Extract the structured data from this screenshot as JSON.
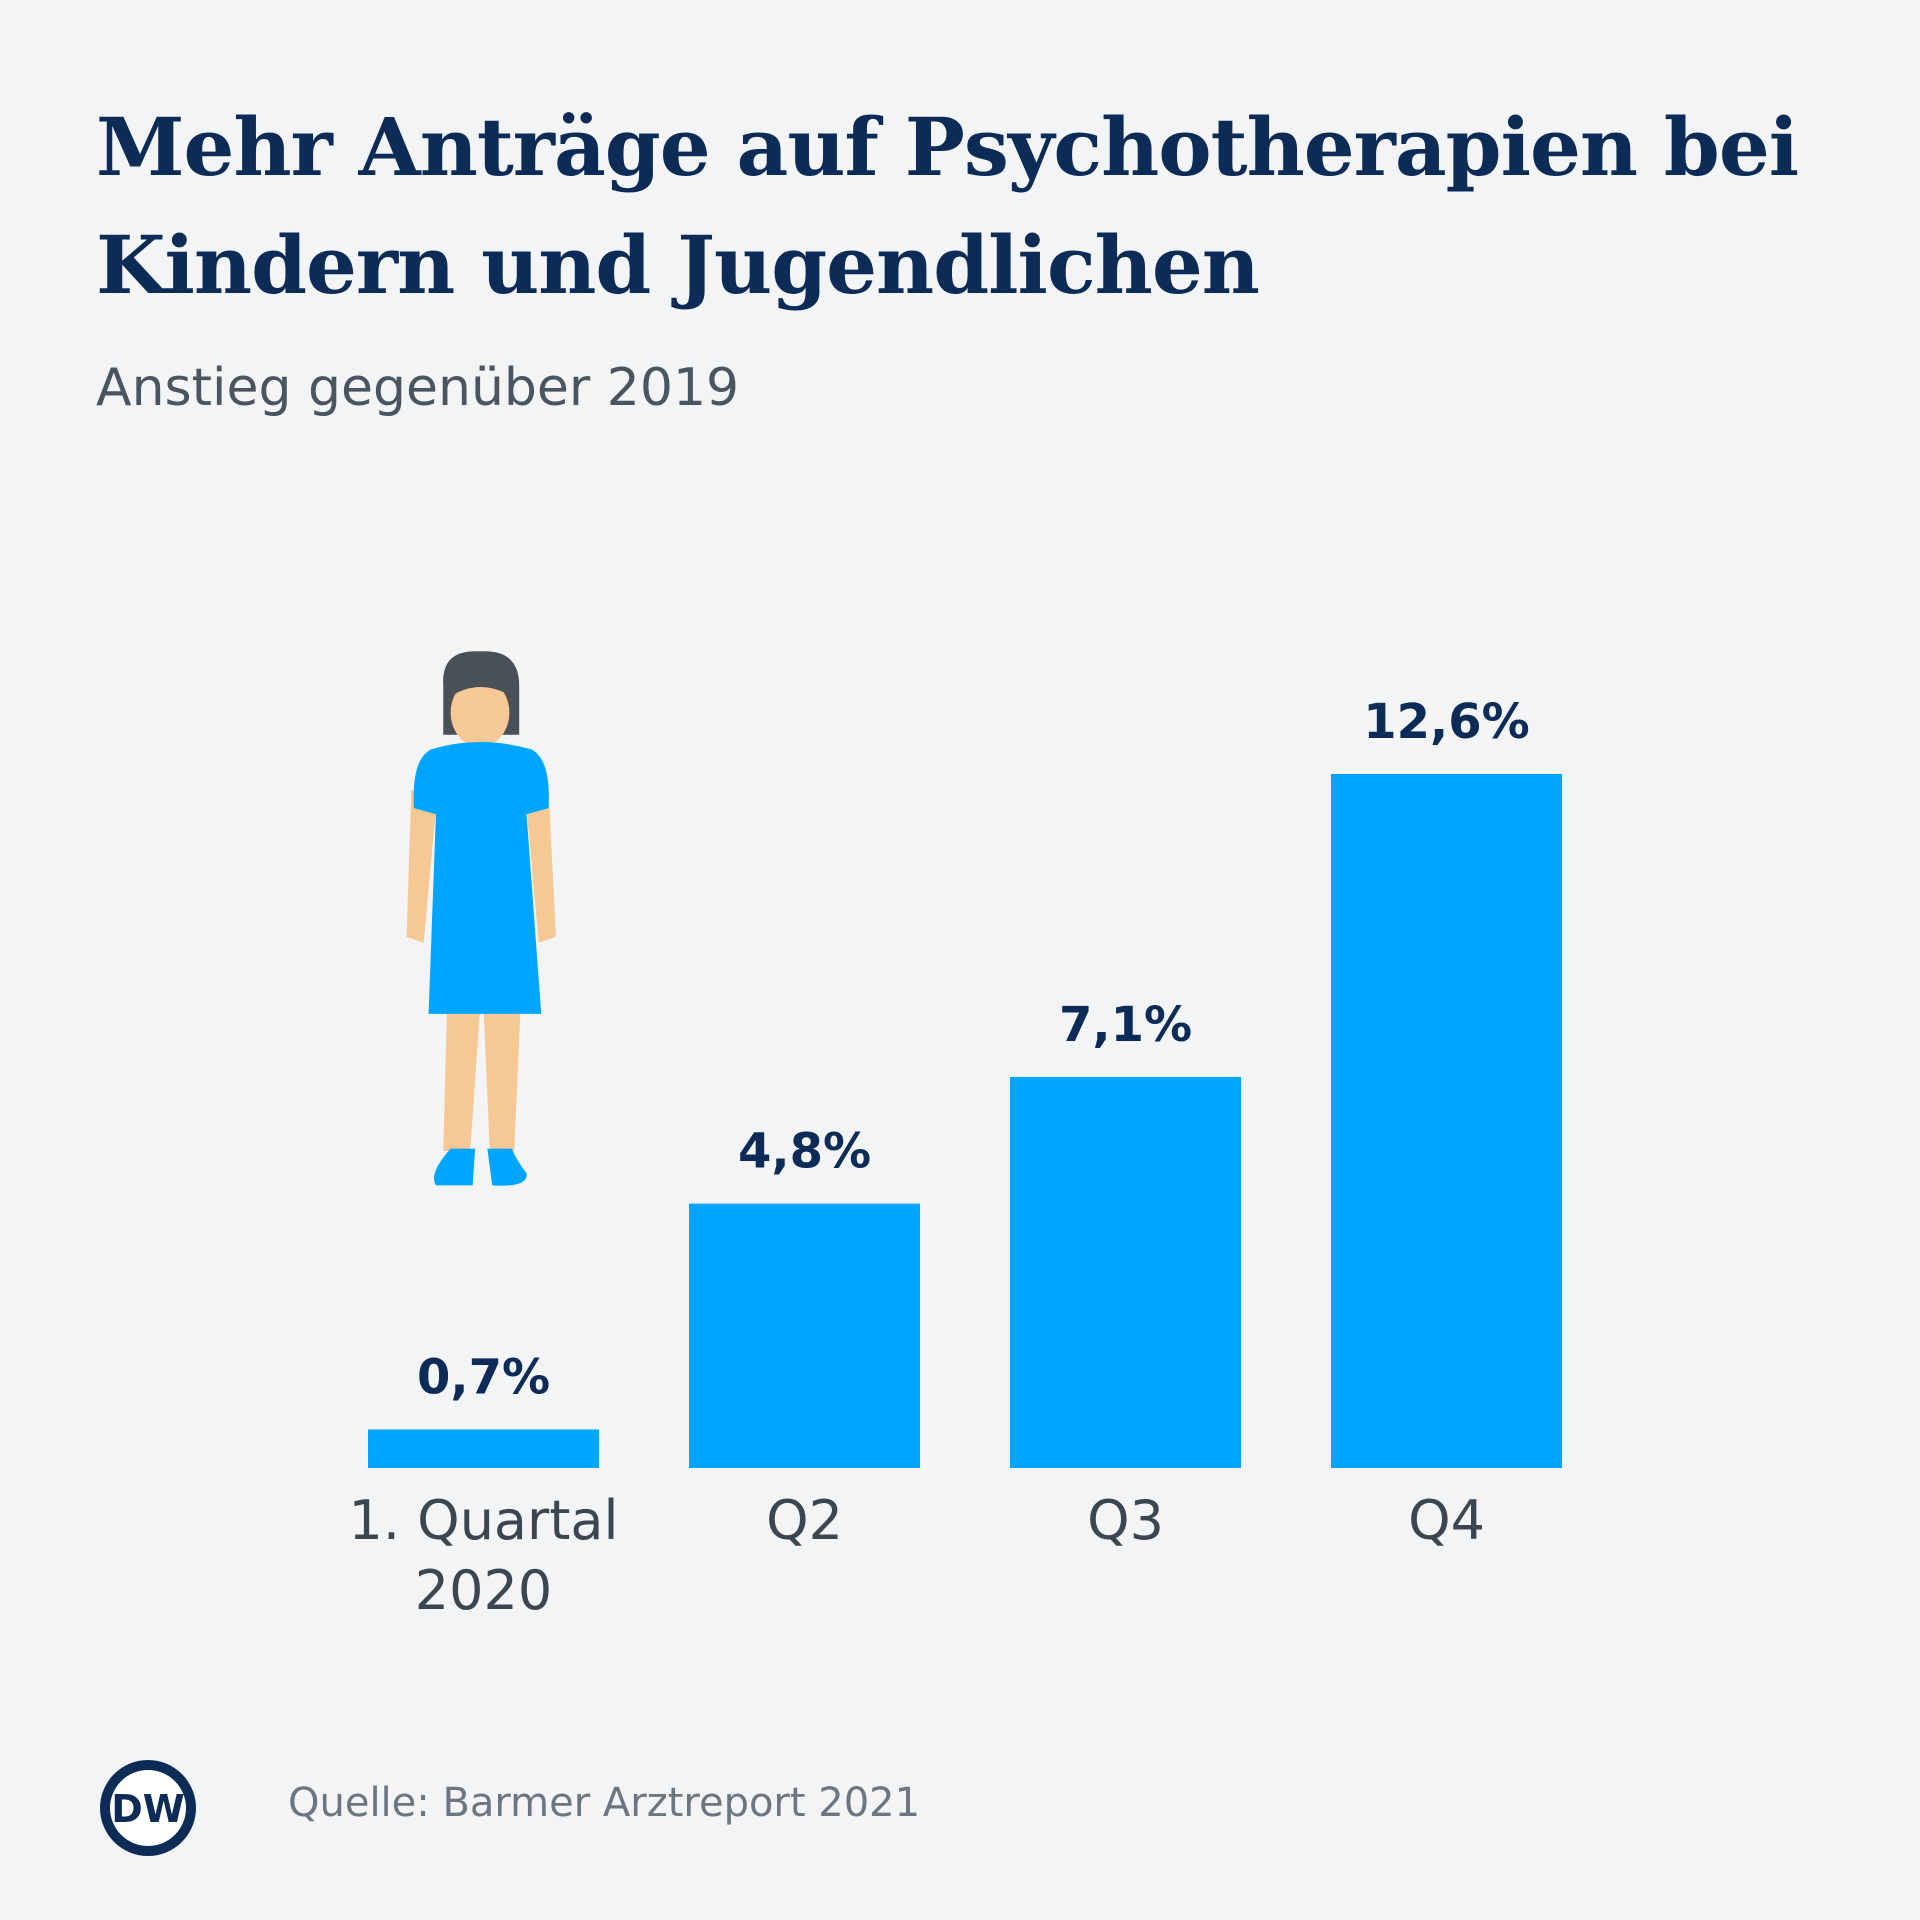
{
  "chart_data": {
    "type": "bar",
    "title": "Mehr Anträge auf Psychotherapien bei Kindern und Jugendlichen",
    "subtitle": "Anstieg gegenüber 2019",
    "categories": [
      "1. Quartal 2020",
      "Q2",
      "Q3",
      "Q4"
    ],
    "values": [
      0.7,
      4.8,
      7.1,
      12.6
    ],
    "value_labels": [
      "0,7%",
      "4,8%",
      "7,1%",
      "12,6%"
    ],
    "color": "#00a5ff",
    "source": "Quelle: Barmer Arztreport 2021",
    "logo": "DW"
  }
}
